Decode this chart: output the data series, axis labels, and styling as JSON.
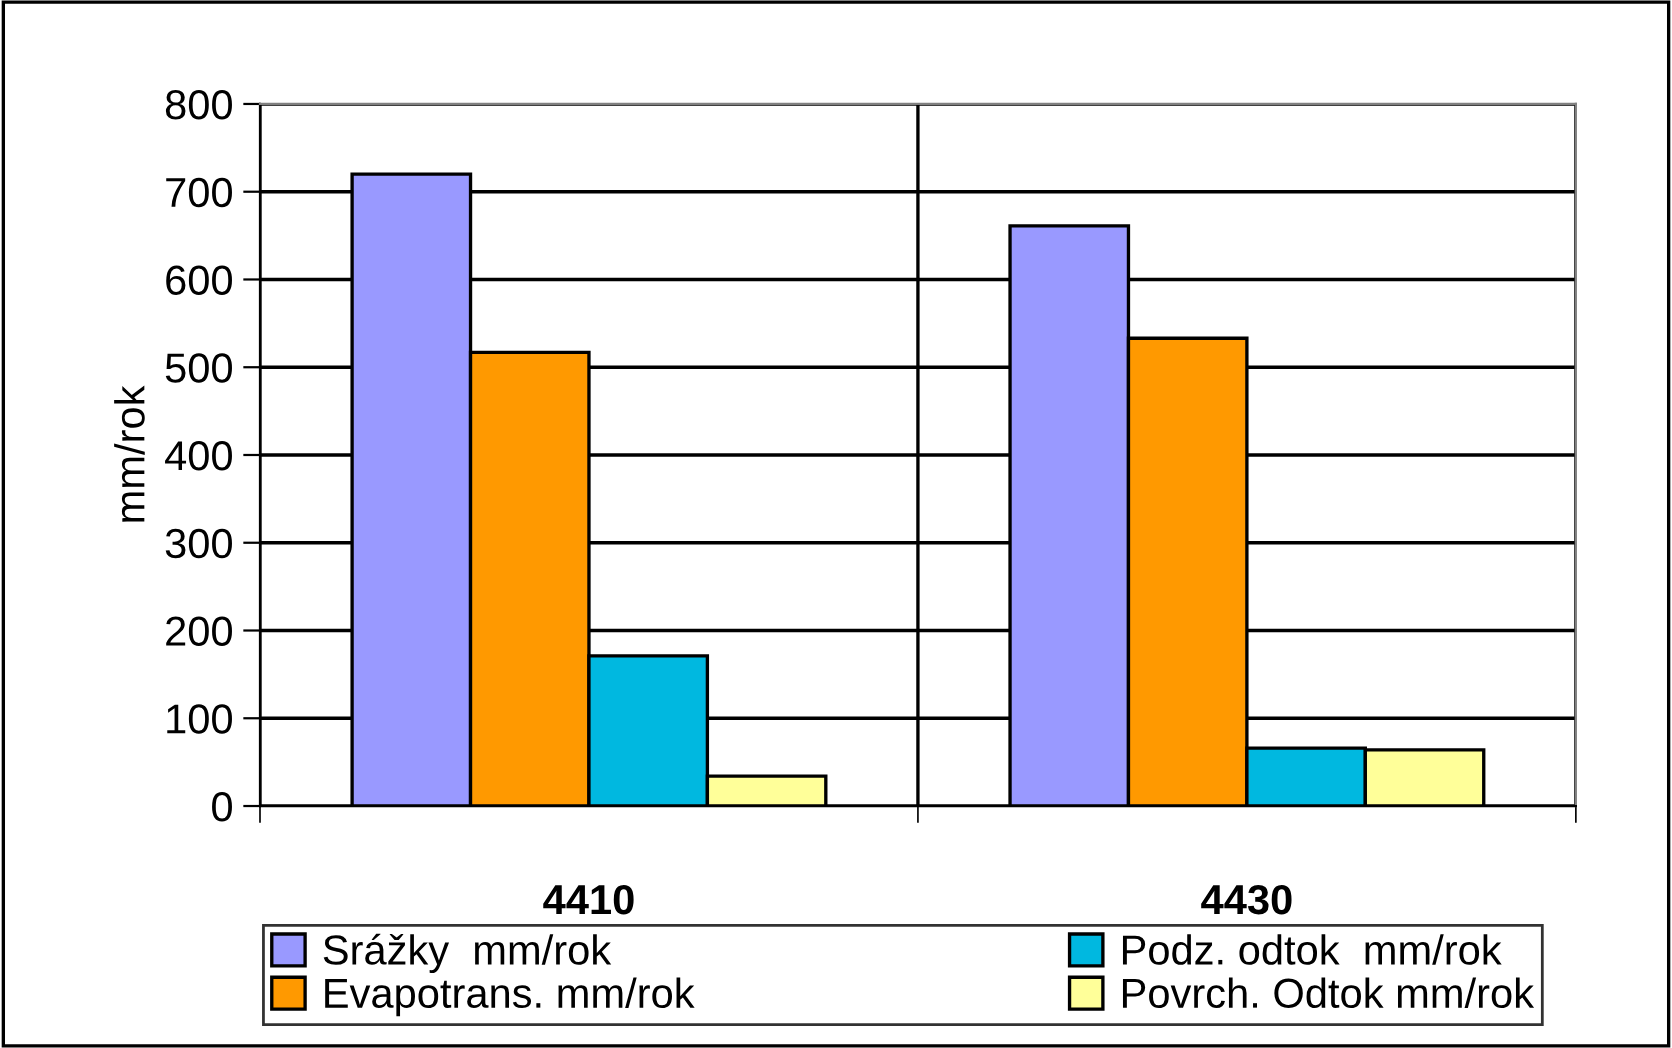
{
  "chart_data": {
    "type": "bar",
    "ylabel": "mm/rok",
    "categories": [
      "4410",
      "4430"
    ],
    "series": [
      {
        "name": "Srážky  mm/rok",
        "color": "#9999ff",
        "values": [
          720,
          661
        ]
      },
      {
        "name": "Evapotrans. mm/rok",
        "color": "#ff9900",
        "values": [
          517,
          533
        ]
      },
      {
        "name": "Podz. odtok  mm/rok",
        "color": "#00b8e0",
        "values": [
          171,
          66
        ]
      },
      {
        "name": "Povrch. Odtok mm/rok",
        "color": "#ffff99",
        "values": [
          34,
          64
        ]
      }
    ],
    "ylim": [
      0,
      800
    ],
    "yticks": [
      0,
      100,
      200,
      300,
      400,
      500,
      600,
      700,
      800
    ],
    "grid": true,
    "legend": "bottom"
  }
}
